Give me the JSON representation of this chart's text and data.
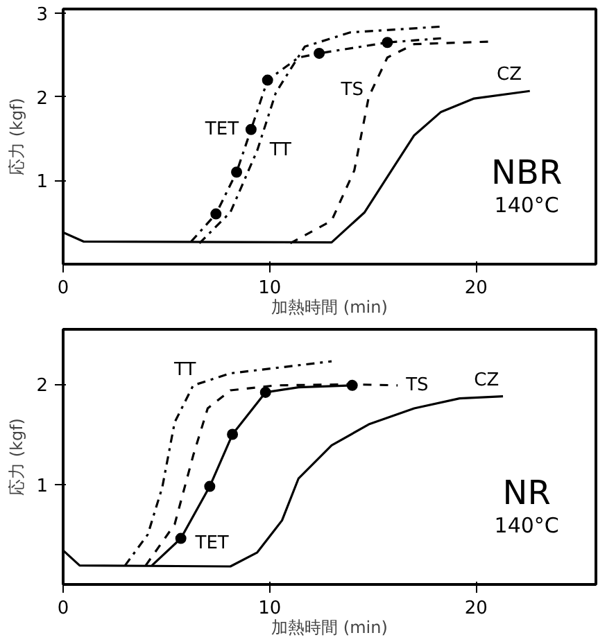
{
  "chart_data": [
    {
      "type": "line",
      "xlim": [
        0,
        25.8
      ],
      "ylim": [
        0,
        3.05
      ],
      "xticks": [
        0,
        10,
        20
      ],
      "yticks": [
        1,
        2,
        3
      ],
      "xlabel": "加熱時間 (min)",
      "ylabel": "応力 (kgf)",
      "series": [
        {
          "name": "CZ",
          "color": "#000000",
          "line_style": "solid",
          "x": [
            0,
            1,
            13,
            14.6,
            15.9,
            17,
            18.3,
            19.9,
            22.6
          ],
          "values": [
            0.38,
            0.27,
            0.26,
            0.62,
            1.12,
            1.54,
            1.82,
            1.98,
            2.07
          ]
        },
        {
          "name": "TS",
          "color": "#000000",
          "line_style": "dashed",
          "x": [
            11,
            13,
            14.1,
            14.8,
            15.7,
            17,
            20.6
          ],
          "values": [
            0.25,
            0.52,
            1.12,
            2.0,
            2.47,
            2.63,
            2.66
          ]
        },
        {
          "name": "TT",
          "color": "#000000",
          "line_style": "dashdot",
          "x": [
            6.6,
            8.1,
            9.4,
            10.3,
            11.7,
            13.9,
            18.3
          ],
          "values": [
            0.25,
            0.62,
            1.36,
            2.05,
            2.6,
            2.77,
            2.84
          ]
        },
        {
          "name": "TET",
          "color": "#000000",
          "line_style": "dashdot",
          "x": [
            6.2,
            7.4,
            8.4,
            9.1,
            9.9,
            11.4,
            12.4,
            15.7,
            18.3
          ],
          "values": [
            0.27,
            0.6,
            1.1,
            1.61,
            2.2,
            2.47,
            2.52,
            2.65,
            2.7
          ]
        },
        {
          "type": "scatter",
          "marker": "circle",
          "color": "#000000",
          "x": [
            7.4,
            8.4,
            9.1,
            9.9,
            12.4,
            15.7
          ],
          "values": [
            0.6,
            1.1,
            1.61,
            2.2,
            2.52,
            2.65
          ]
        }
      ],
      "annotations": [
        "NBR",
        "140°C"
      ]
    },
    {
      "type": "line",
      "xlim": [
        0,
        25.8
      ],
      "ylim": [
        0,
        2.55
      ],
      "xticks": [
        0,
        10,
        20
      ],
      "yticks": [
        1,
        2
      ],
      "xlabel": "加熱時間 (min)",
      "ylabel": "応力 (kgf)",
      "series": [
        {
          "name": "CZ",
          "color": "#000000",
          "line_style": "solid",
          "x": [
            0,
            0.8,
            8.1,
            9.4,
            10.6,
            11.4,
            13,
            14.8,
            17,
            19.2,
            21.3
          ],
          "values": [
            0.34,
            0.19,
            0.18,
            0.32,
            0.64,
            1.06,
            1.39,
            1.6,
            1.76,
            1.86,
            1.88
          ]
        },
        {
          "name": "TT",
          "color": "#000000",
          "line_style": "dashdot",
          "x": [
            3,
            4.1,
            4.8,
            5.4,
            6.3,
            8.1,
            13
          ],
          "values": [
            0.19,
            0.5,
            0.97,
            1.62,
            1.99,
            2.11,
            2.23
          ]
        },
        {
          "name": "TS",
          "color": "#000000",
          "line_style": "dashed",
          "x": [
            4,
            5.4,
            6.3,
            7,
            8.1,
            10.3,
            13.9,
            16.2
          ],
          "values": [
            0.19,
            0.6,
            1.29,
            1.76,
            1.94,
            1.99,
            2.0,
            1.99
          ]
        },
        {
          "name": "TET",
          "color": "#000000",
          "line_style": "solid",
          "x": [
            4.3,
            5.7,
            7.1,
            8.2,
            9.8,
            11.4,
            14
          ],
          "values": [
            0.19,
            0.46,
            0.98,
            1.5,
            1.92,
            1.97,
            1.99
          ]
        },
        {
          "type": "scatter",
          "marker": "circle",
          "color": "#000000",
          "x": [
            5.7,
            7.1,
            8.2,
            9.8,
            14
          ],
          "values": [
            0.46,
            0.98,
            1.5,
            1.92,
            1.99
          ]
        }
      ],
      "annotations": [
        "NR",
        "140°C"
      ]
    }
  ]
}
